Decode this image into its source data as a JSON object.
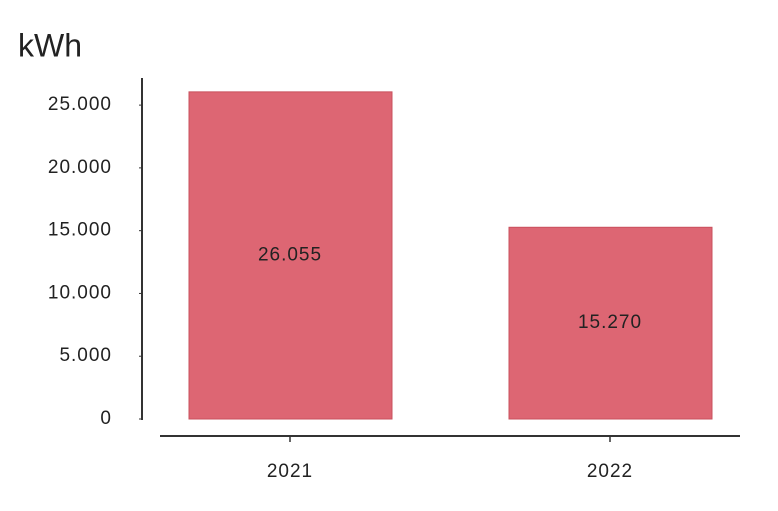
{
  "chart_data": {
    "type": "bar",
    "y_label": "kWh",
    "categories": [
      "2021",
      "2022"
    ],
    "values": [
      26055,
      15270
    ],
    "value_labels": [
      "26.055",
      "15.270"
    ],
    "color": "#dd6673",
    "ylim": [
      0,
      27000
    ],
    "yticks": [
      0,
      {
        "value": 5000,
        "label": "5.000"
      },
      {
        "value": 10000,
        "label": "10.000"
      },
      {
        "value": 15000,
        "label": "15.000"
      },
      {
        "value": 20000,
        "label": "20.000"
      },
      {
        "value": 25000,
        "label": "25.000"
      }
    ],
    "grid": false
  }
}
